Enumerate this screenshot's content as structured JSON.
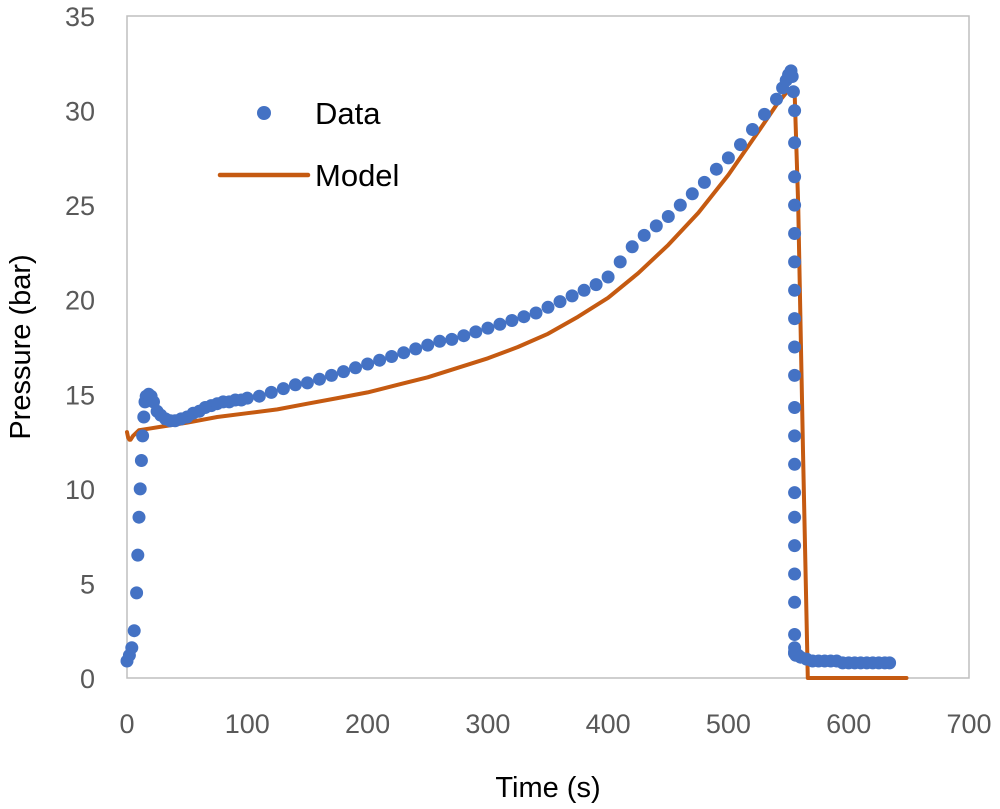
{
  "chart_data": {
    "type": "scatter",
    "title": "",
    "xlabel": "Time (s)",
    "ylabel": "Pressure (bar)",
    "xlim": [
      0,
      700
    ],
    "ylim": [
      0,
      35
    ],
    "xticks": [
      0,
      100,
      200,
      300,
      400,
      500,
      600,
      700
    ],
    "yticks": [
      0,
      5,
      10,
      15,
      20,
      25,
      30,
      35
    ],
    "grid": false,
    "legend_position": "top-left",
    "colors": {
      "data": "#4472C4",
      "model": "#C55A11",
      "axis": "#BFBFBF"
    },
    "series": [
      {
        "name": "Data",
        "kind": "scatter",
        "x": [
          0,
          2,
          4,
          6,
          8,
          9,
          10,
          11,
          12,
          13,
          14,
          15,
          16,
          18,
          20,
          22,
          25,
          28,
          32,
          36,
          40,
          45,
          50,
          55,
          60,
          65,
          70,
          75,
          80,
          85,
          90,
          95,
          100,
          110,
          120,
          130,
          140,
          150,
          160,
          170,
          180,
          190,
          200,
          210,
          220,
          230,
          240,
          250,
          260,
          270,
          280,
          290,
          300,
          310,
          320,
          330,
          340,
          350,
          360,
          370,
          380,
          390,
          400,
          410,
          420,
          430,
          440,
          450,
          460,
          470,
          480,
          490,
          500,
          510,
          520,
          530,
          540,
          545,
          548,
          550,
          552,
          553,
          554,
          555,
          555,
          555,
          555,
          555,
          555,
          555,
          555,
          555,
          555,
          555,
          555,
          555,
          555,
          555,
          555,
          555,
          555,
          555,
          555,
          555,
          555,
          555,
          556,
          558,
          560,
          565,
          570,
          575,
          580,
          585,
          590,
          595,
          600,
          605,
          610,
          615,
          620,
          625,
          630,
          634
        ],
        "y": [
          0.9,
          1.2,
          1.6,
          2.5,
          4.5,
          6.5,
          8.5,
          10,
          11.5,
          12.8,
          13.8,
          14.6,
          14.9,
          15.0,
          14.9,
          14.6,
          14.1,
          13.9,
          13.7,
          13.6,
          13.6,
          13.7,
          13.8,
          14.0,
          14.1,
          14.3,
          14.4,
          14.5,
          14.6,
          14.6,
          14.7,
          14.7,
          14.8,
          14.9,
          15.1,
          15.3,
          15.5,
          15.6,
          15.8,
          16.0,
          16.2,
          16.4,
          16.6,
          16.8,
          17.0,
          17.2,
          17.4,
          17.6,
          17.8,
          17.9,
          18.1,
          18.3,
          18.5,
          18.7,
          18.9,
          19.1,
          19.3,
          19.6,
          19.9,
          20.2,
          20.5,
          20.8,
          21.2,
          22.0,
          22.8,
          23.4,
          23.9,
          24.4,
          25.0,
          25.6,
          26.2,
          26.9,
          27.5,
          28.2,
          29.0,
          29.8,
          30.6,
          31.2,
          31.6,
          31.9,
          32.1,
          31.8,
          31.0,
          30.0,
          28.3,
          26.5,
          25.0,
          23.5,
          22.0,
          20.5,
          19.0,
          17.5,
          16.0,
          14.3,
          12.8,
          11.3,
          9.8,
          8.5,
          7.0,
          5.5,
          4.0,
          2.3,
          1.6,
          1.4,
          1.3,
          1.3,
          1.2,
          1.2,
          1.1,
          1.0,
          0.9,
          0.9,
          0.9,
          0.9,
          0.9,
          0.8,
          0.8,
          0.8,
          0.8,
          0.8,
          0.8,
          0.8,
          0.8,
          0.8
        ]
      },
      {
        "name": "Model",
        "kind": "line",
        "x": [
          0,
          1,
          2,
          3,
          5,
          10,
          20,
          30,
          50,
          75,
          100,
          125,
          150,
          175,
          200,
          225,
          250,
          275,
          300,
          325,
          350,
          375,
          400,
          425,
          450,
          475,
          500,
          525,
          540,
          550,
          555,
          558,
          562,
          566,
          600,
          648
        ],
        "y": [
          13.0,
          12.7,
          12.6,
          12.6,
          12.8,
          13.1,
          13.2,
          13.3,
          13.5,
          13.8,
          14.0,
          14.2,
          14.5,
          14.8,
          15.1,
          15.5,
          15.9,
          16.4,
          16.9,
          17.5,
          18.2,
          19.1,
          20.1,
          21.4,
          22.9,
          24.6,
          26.6,
          28.9,
          30.3,
          31.1,
          31.0,
          25.0,
          12.0,
          0,
          0,
          0
        ]
      }
    ]
  }
}
